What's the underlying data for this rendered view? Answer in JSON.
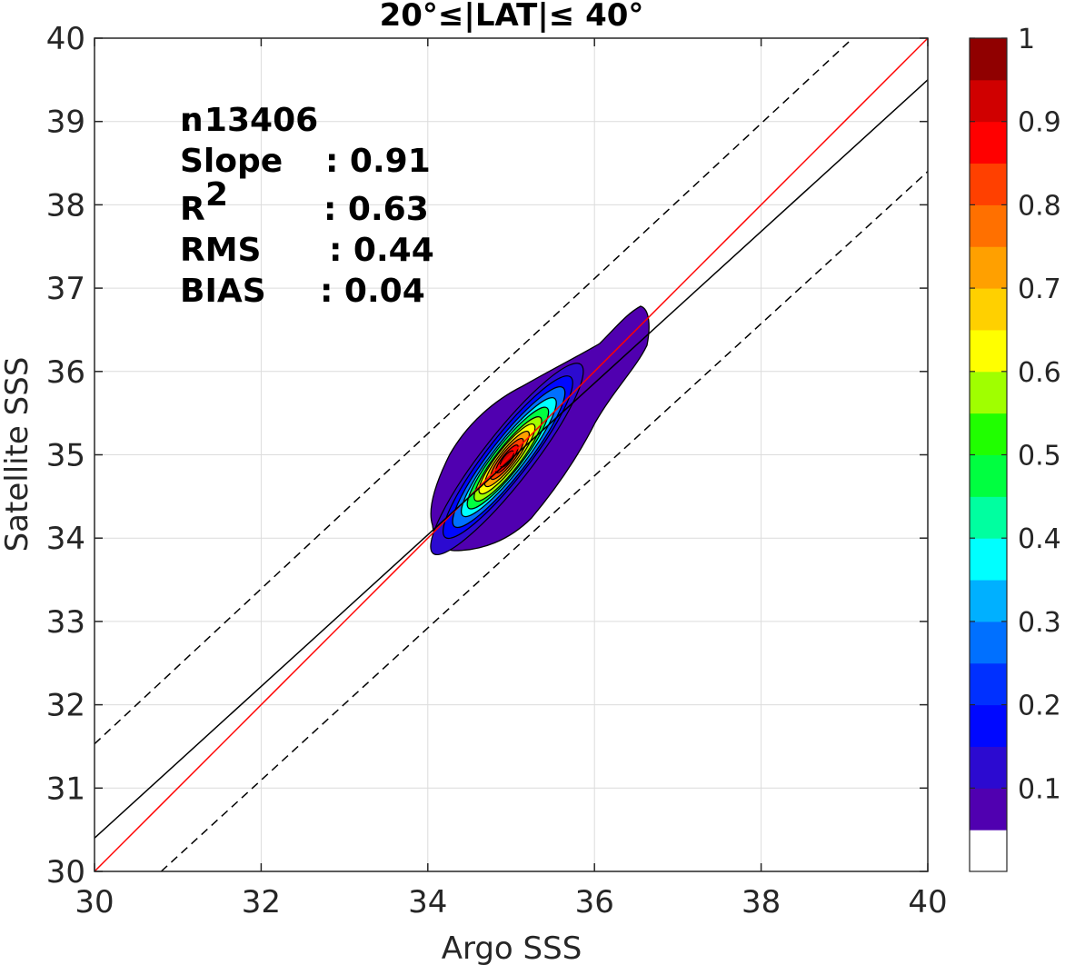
{
  "chart_data": {
    "type": "contour",
    "title": "20°≤|LAT|≤ 40°",
    "xlabel": "Argo SSS",
    "ylabel": "Satellite SSS",
    "xlim": [
      30,
      40
    ],
    "ylim": [
      30,
      40
    ],
    "xticks": [
      "30",
      "32",
      "34",
      "36",
      "38",
      "40"
    ],
    "yticks": [
      "30",
      "31",
      "32",
      "33",
      "34",
      "35",
      "36",
      "37",
      "38",
      "39",
      "40"
    ],
    "grid": true,
    "stats": [
      {
        "label": "n",
        "value": ": 13406"
      },
      {
        "label": "Slope",
        "value": ": 0.91"
      },
      {
        "label": "R",
        "sup": "2",
        "value": ": 0.63"
      },
      {
        "label": "RMS",
        "value": ": 0.44"
      },
      {
        "label": "BIAS",
        "value": ": 0.04"
      }
    ],
    "lines": [
      {
        "style": "red-solid",
        "x": [
          30,
          40
        ],
        "y": [
          30,
          40
        ]
      },
      {
        "style": "black-solid",
        "x": [
          30,
          40
        ],
        "y": [
          30.4,
          39.5
        ]
      },
      {
        "style": "black-dashed",
        "x": [
          30,
          39.1
        ],
        "y": [
          31.53,
          40
        ]
      },
      {
        "style": "black-dashed",
        "x": [
          30.8,
          40
        ],
        "y": [
          30,
          38.4
        ]
      }
    ],
    "contours": {
      "center": [
        34.95,
        34.95
      ],
      "peak_normalized_density": 1.0,
      "outer_extent": {
        "x": [
          34.05,
          36.65
        ],
        "y": [
          33.85,
          36.75
        ]
      }
    },
    "colorbar": {
      "ticks": [
        "0.1",
        "0.2",
        "0.3",
        "0.4",
        "0.5",
        "0.6",
        "0.7",
        "0.8",
        "0.9",
        "1"
      ],
      "range": [
        0,
        1
      ],
      "colors": [
        "#ffffff",
        "#5000b0",
        "#2c0ad0",
        "#0008ff",
        "#0030ff",
        "#0070ff",
        "#00b0ff",
        "#00ffff",
        "#00ffa0",
        "#00ff40",
        "#20ff00",
        "#a0ff00",
        "#ffff00",
        "#ffd000",
        "#ffa000",
        "#ff7000",
        "#ff4000",
        "#ff0000",
        "#d00000",
        "#900000"
      ]
    }
  }
}
